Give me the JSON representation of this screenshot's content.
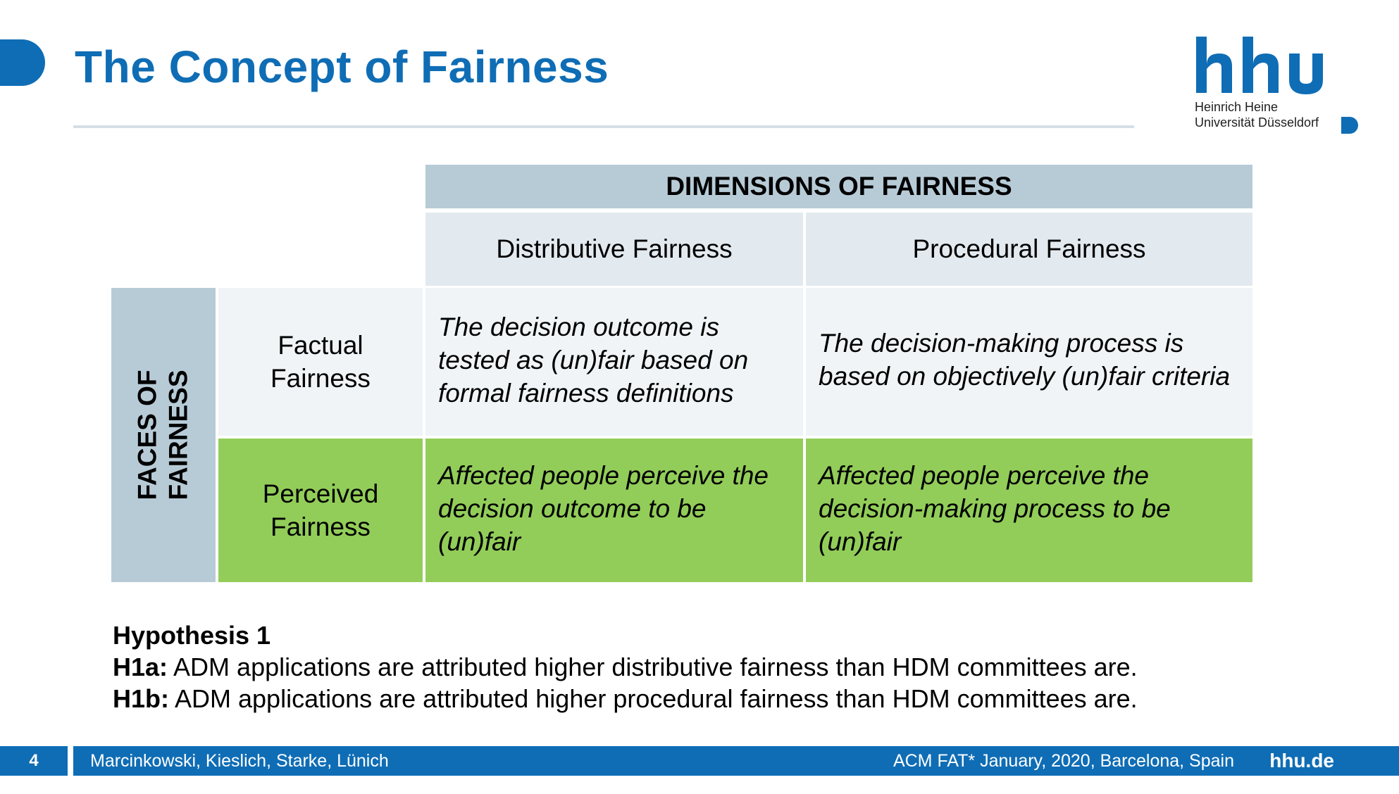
{
  "slide": {
    "title": "The Concept of Fairness"
  },
  "logo": {
    "mark": "hhu",
    "line1": "Heinrich Heine",
    "line2": "Universität Düsseldorf"
  },
  "table": {
    "dimensions_header": "DIMENSIONS OF FAIRNESS",
    "faces_header_line1": "FACES OF",
    "faces_header_line2": "FAIRNESS",
    "columns": [
      "Distributive Fairness",
      "Procedural Fairness"
    ],
    "rows": [
      {
        "label_line1": "Factual",
        "label_line2": "Fairness",
        "cells": [
          "The decision outcome is tested as (un)fair based on formal fairness definitions",
          "The decision-making process is based on objectively (un)fair criteria"
        ]
      },
      {
        "label_line1": "Perceived",
        "label_line2": "Fairness",
        "cells": [
          "Affected people perceive the decision outcome to be (un)fair",
          "Affected people perceive the decision-making process to be (un)fair"
        ]
      }
    ]
  },
  "hypothesis": {
    "title": "Hypothesis 1",
    "h1a_label": "H1a:",
    "h1a_text": " ADM applications are attributed higher distributive fairness than HDM committees are.",
    "h1b_label": "H1b:",
    "h1b_text": " ADM applications are attributed higher procedural fairness than HDM committees are."
  },
  "footer": {
    "page": "4",
    "authors": "Marcinkowski, Kieslich, Starke, Lünich",
    "conference": "ACM FAT* January, 2020, Barcelona, Spain",
    "site": "hhu.de"
  },
  "colors": {
    "brand_blue": "#0f6db5",
    "header_gray_blue": "#b7cbd7",
    "perceived_green": "#92cd59",
    "factual_light": "#f0f4f7"
  }
}
